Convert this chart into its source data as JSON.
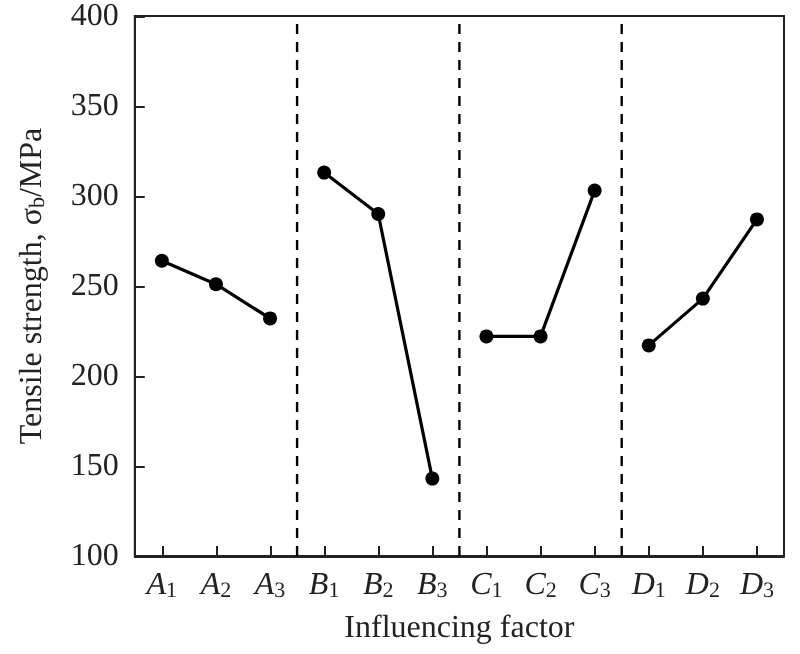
{
  "chart_data": {
    "type": "line",
    "xlabel": "Influencing factor",
    "ylabel": "Tensile strength, σ$_{b}$/MPa",
    "ylim": [
      100,
      400
    ],
    "yticks": [
      100,
      150,
      200,
      250,
      300,
      350,
      400
    ],
    "categories": [
      "A$_{1}$",
      "A$_{2}$",
      "A$_{3}$",
      "B$_{1}$",
      "B$_{2}$",
      "B$_{3}$",
      "C$_{1}$",
      "C$_{2}$",
      "C$_{3}$",
      "D$_{1}$",
      "D$_{2}$",
      "D$_{3}$"
    ],
    "series": [
      {
        "color": "#000000",
        "values": [
          264,
          251,
          232,
          null,
          null,
          null,
          null,
          null,
          null,
          null,
          null,
          null
        ]
      },
      {
        "color": "#000000",
        "values": [
          null,
          null,
          null,
          313,
          290,
          143,
          null,
          null,
          null,
          null,
          null,
          null
        ]
      },
      {
        "color": "#000000",
        "values": [
          null,
          null,
          null,
          null,
          null,
          null,
          222,
          222,
          303,
          null,
          null,
          null
        ]
      },
      {
        "color": "#000000",
        "values": [
          null,
          null,
          null,
          null,
          null,
          null,
          null,
          null,
          null,
          217,
          243,
          287
        ]
      }
    ],
    "marker": "circle",
    "grid": false
  }
}
